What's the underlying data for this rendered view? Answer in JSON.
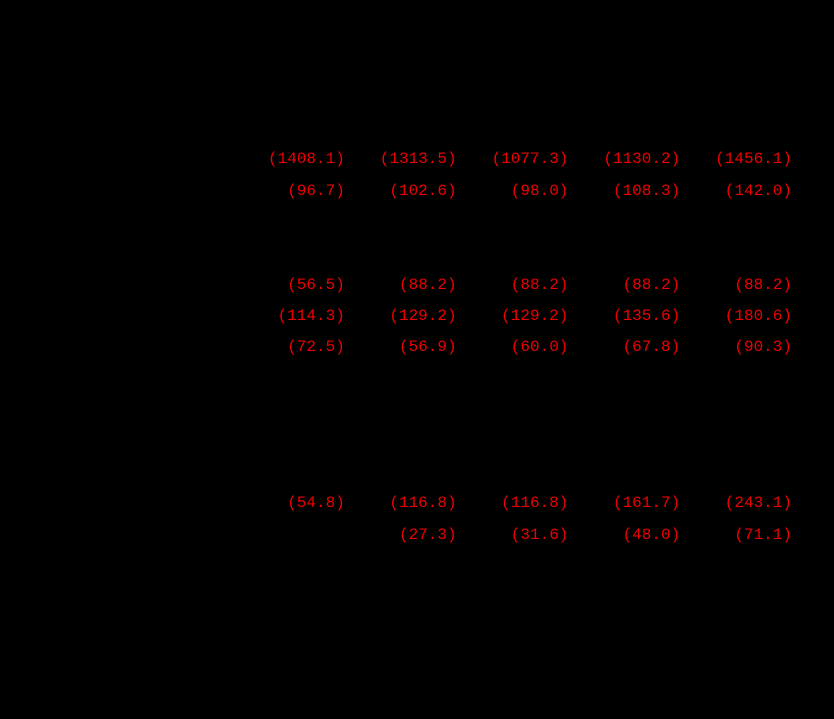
{
  "page": {
    "background_color": "#000000",
    "negative_number_color": "#ee0000"
  },
  "table": {
    "columns": 5,
    "note": "only red parenthesized (negative) values are visible on the black background",
    "rows": [
      {
        "values": [
          "(1408.1)",
          "(1313.5)",
          "(1077.3)",
          "(1130.2)",
          "(1456.1)"
        ]
      },
      {
        "values": [
          "(96.7)",
          "(102.6)",
          "(98.0)",
          "(108.3)",
          "(142.0)"
        ]
      },
      {
        "values": [
          "(56.5)",
          "(88.2)",
          "(88.2)",
          "(88.2)",
          "(88.2)"
        ]
      },
      {
        "values": [
          "(114.3)",
          "(129.2)",
          "(129.2)",
          "(135.6)",
          "(180.6)"
        ]
      },
      {
        "values": [
          "(72.5)",
          "(56.9)",
          "(60.0)",
          "(67.8)",
          "(90.3)"
        ]
      },
      {
        "values": [
          "(54.8)",
          "(116.8)",
          "(116.8)",
          "(161.7)",
          "(243.1)"
        ]
      },
      {
        "values": [
          "",
          "(27.3)",
          "(31.6)",
          "(48.0)",
          "(71.1)"
        ]
      }
    ]
  }
}
